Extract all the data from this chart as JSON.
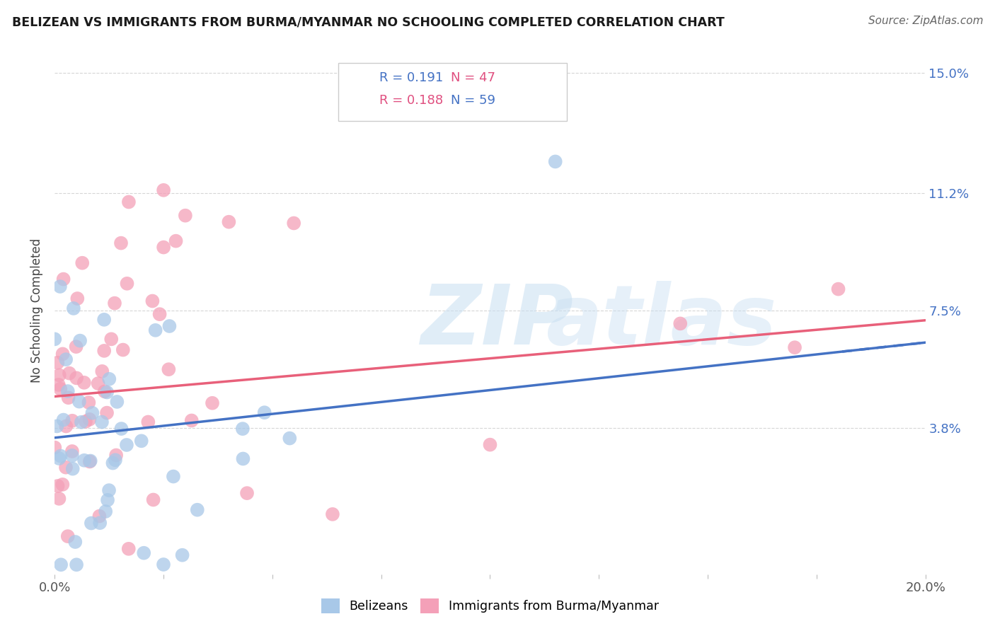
{
  "title": "BELIZEAN VS IMMIGRANTS FROM BURMA/MYANMAR NO SCHOOLING COMPLETED CORRELATION CHART",
  "source": "Source: ZipAtlas.com",
  "ylabel": "No Schooling Completed",
  "xlim": [
    0.0,
    0.2
  ],
  "ylim": [
    -0.008,
    0.158
  ],
  "yticks": [
    0.038,
    0.075,
    0.112,
    0.15
  ],
  "ytick_labels": [
    "3.8%",
    "7.5%",
    "11.2%",
    "15.0%"
  ],
  "xticks": [
    0.0,
    0.025,
    0.05,
    0.075,
    0.1,
    0.125,
    0.15,
    0.175,
    0.2
  ],
  "xtick_labels": [
    "0.0%",
    "",
    "",
    "",
    "",
    "",
    "",
    "",
    "20.0%"
  ],
  "series1_name": "Belizeans",
  "series1_color": "#a8c8e8",
  "series1_R": 0.191,
  "series1_N": 47,
  "series1_line_color": "#4472c4",
  "series1_line_start": 0.035,
  "series1_line_end": 0.065,
  "series2_name": "Immigrants from Burma/Myanmar",
  "series2_color": "#f4a0b8",
  "series2_R": 0.188,
  "series2_N": 59,
  "series2_line_color": "#e8607a",
  "series2_line_start": 0.048,
  "series2_line_end": 0.072,
  "watermark_zip": "ZIP",
  "watermark_atlas": "atlas",
  "background_color": "#ffffff",
  "grid_color": "#cccccc",
  "legend_R1_color": "#4472c4",
  "legend_N1_color": "#e05080",
  "legend_R2_color": "#e05080",
  "legend_N2_color": "#4472c4"
}
